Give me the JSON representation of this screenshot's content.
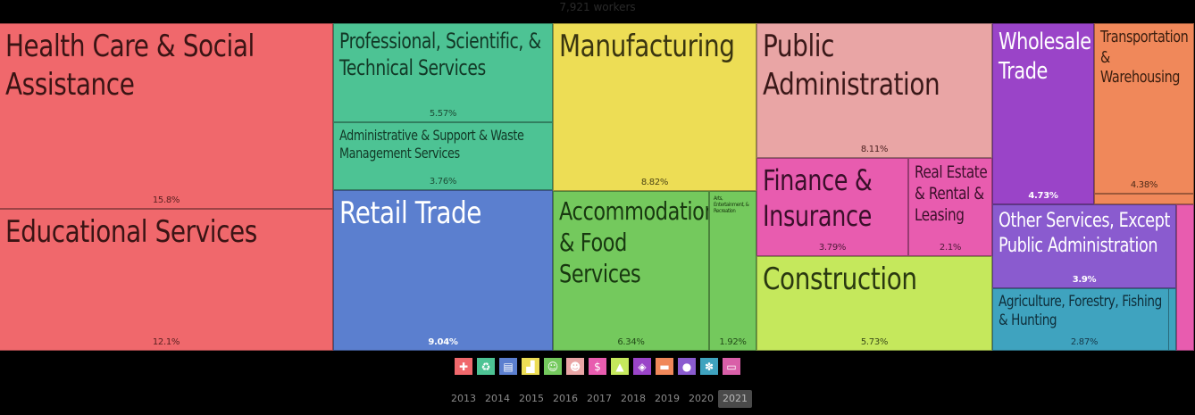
{
  "header": {
    "total_label": "7,921 workers"
  },
  "chart_data": {
    "type": "treemap",
    "title": "",
    "items": [
      {
        "name": "Health Care & Social Assistance",
        "share_label": "15.8%",
        "value": 15.8,
        "color": "#f0686c",
        "label_color": "#3a1414",
        "share_color": "#5a2020",
        "icon": "health-cross-icon"
      },
      {
        "name": "Educational Services",
        "share_label": "12.1%",
        "value": 12.1,
        "color": "#f0686c",
        "label_color": "#3a1414",
        "share_color": "#5a2020",
        "icon": ""
      },
      {
        "name": "Professional, Scientific, & Technical Services",
        "share_label": "5.57%",
        "value": 5.57,
        "color": "#4dc394",
        "label_color": "#123826",
        "share_color": "#1d4d36",
        "icon": "recycle-icon"
      },
      {
        "name": "Administrative & Support & Waste Management Services",
        "share_label": "3.76%",
        "value": 3.76,
        "color": "#4dc394",
        "label_color": "#123826",
        "share_color": "#1d4d36",
        "icon": ""
      },
      {
        "name": "Retail Trade",
        "share_label": "9.04%",
        "value": 9.04,
        "color": "#5b7fcf",
        "label_color": "#ffffff",
        "share_color": "#ffffff",
        "icon": "storefront-icon"
      },
      {
        "name": "Manufacturing",
        "share_label": "8.82%",
        "value": 8.82,
        "color": "#eddd55",
        "label_color": "#3a3510",
        "share_color": "#4d4514",
        "icon": "factory-icon"
      },
      {
        "name": "Accommodation & Food Services",
        "share_label": "6.34%",
        "value": 6.34,
        "color": "#74c95d",
        "label_color": "#183810",
        "share_color": "#224a18",
        "icon": "masks-icon"
      },
      {
        "name": "Arts, Entertainment, & Recreation",
        "share_label": "1.92%",
        "value": 1.92,
        "color": "#74c95d",
        "label_color": "#183810",
        "share_color": "#224a18",
        "icon": ""
      },
      {
        "name": "Public Administration",
        "share_label": "8.11%",
        "value": 8.11,
        "color": "#e9a5a5",
        "label_color": "#3a1818",
        "share_color": "#4d2222",
        "icon": "people-icon"
      },
      {
        "name": "Finance & Insurance",
        "share_label": "3.79%",
        "value": 3.79,
        "color": "#e85caf",
        "label_color": "#3a0f2a",
        "share_color": "#4d1a38",
        "icon": "money-icon"
      },
      {
        "name": "Real Estate & Rental & Leasing",
        "share_label": "2.1%",
        "value": 2.1,
        "color": "#e85caf",
        "label_color": "#3a0f2a",
        "share_color": "#4d1a38",
        "icon": ""
      },
      {
        "name": "Construction",
        "share_label": "5.73%",
        "value": 5.73,
        "color": "#c5e85c",
        "label_color": "#2a3810",
        "share_color": "#3a4a18",
        "icon": "cone-icon"
      },
      {
        "name": "Wholesale Trade",
        "share_label": "4.73%",
        "value": 4.73,
        "color": "#9a44c8",
        "label_color": "#ffffff",
        "share_color": "#ffffff",
        "icon": "boxes-icon"
      },
      {
        "name": "Transportation & Warehousing",
        "share_label": "4.38%",
        "value": 4.38,
        "color": "#f0885a",
        "label_color": "#3a1e0f",
        "share_color": "#4d2a18",
        "icon": "truck-icon"
      },
      {
        "name": "Other Services, Except Public Administration",
        "share_label": "3.9%",
        "value": 3.9,
        "color": "#8a5bcf",
        "label_color": "#ffffff",
        "share_color": "#ffffff",
        "icon": "person-icon"
      },
      {
        "name": "Agriculture, Forestry, Fishing & Hunting",
        "share_label": "2.87%",
        "value": 2.87,
        "color": "#3fa3bf",
        "label_color": "#0f2e3a",
        "share_color": "#16394a",
        "icon": "wheat-icon"
      }
    ]
  },
  "legend_icons": [
    {
      "name": "health-cross-icon",
      "glyph": "✚",
      "color": "#f0686c"
    },
    {
      "name": "recycle-icon",
      "glyph": "♻",
      "color": "#4dc394"
    },
    {
      "name": "storefront-icon",
      "glyph": "▤",
      "color": "#5b7fcf"
    },
    {
      "name": "factory-icon",
      "glyph": "▟",
      "color": "#eddd55"
    },
    {
      "name": "masks-icon",
      "glyph": "☺",
      "color": "#74c95d"
    },
    {
      "name": "people-icon",
      "glyph": "☻",
      "color": "#e9a5a5"
    },
    {
      "name": "money-icon",
      "glyph": "$",
      "color": "#e85caf"
    },
    {
      "name": "cone-icon",
      "glyph": "▲",
      "color": "#c5e85c"
    },
    {
      "name": "boxes-icon",
      "glyph": "◈",
      "color": "#9a44c8"
    },
    {
      "name": "truck-icon",
      "glyph": "▬",
      "color": "#f0885a"
    },
    {
      "name": "person-icon",
      "glyph": "●",
      "color": "#8a5bcf"
    },
    {
      "name": "wheat-icon",
      "glyph": "✽",
      "color": "#3fa3bf"
    },
    {
      "name": "computer-icon",
      "glyph": "▭",
      "color": "#d95fa8"
    }
  ],
  "years": {
    "items": [
      "2013",
      "2014",
      "2015",
      "2016",
      "2017",
      "2018",
      "2019",
      "2020",
      "2021"
    ],
    "active": "2021"
  }
}
